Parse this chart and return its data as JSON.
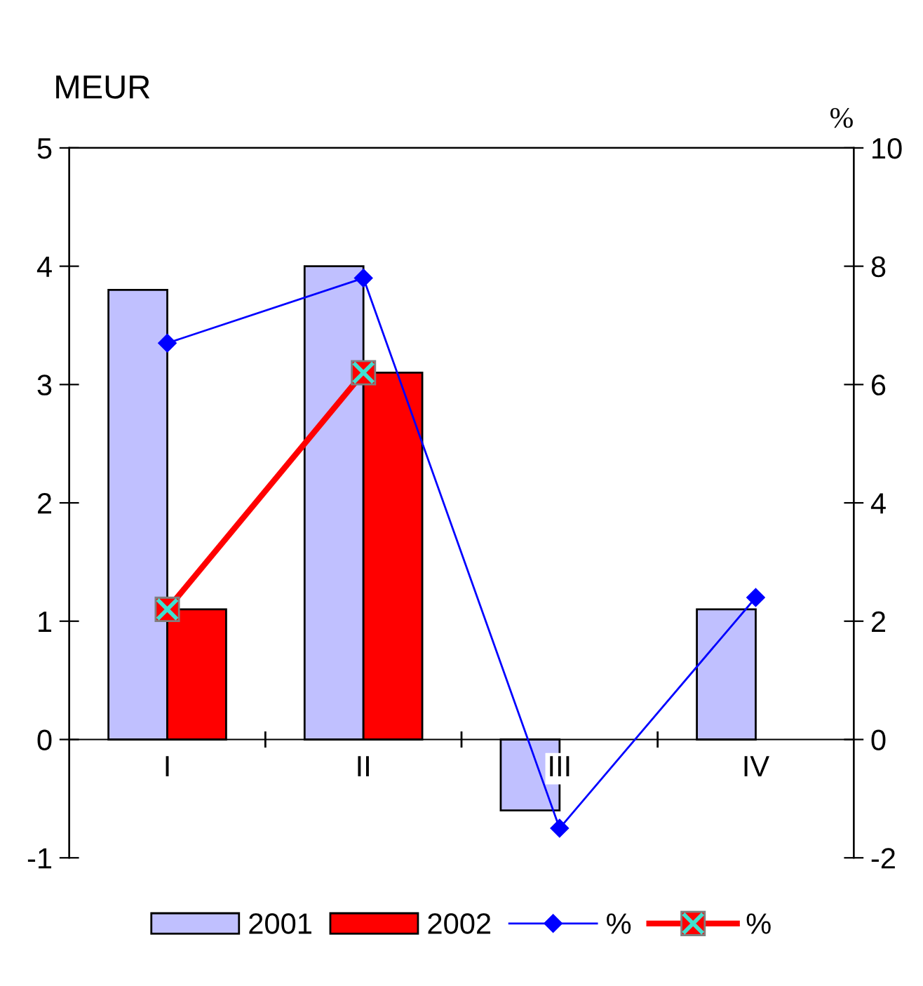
{
  "chart_data": {
    "type": "bar",
    "ylabel": "MEUR",
    "y2label": "%",
    "categories": [
      "I",
      "II",
      "III",
      "IV"
    ],
    "series": [
      {
        "name": "2001",
        "color": "#c0c0ff",
        "values": [
          3.8,
          4.0,
          -0.6,
          1.1
        ]
      },
      {
        "name": "2002",
        "color": "#ff0000",
        "values": [
          1.1,
          3.1,
          null,
          null
        ]
      },
      {
        "name": "%",
        "type": "line",
        "axis": "y2",
        "color": "#0000ff",
        "marker": "diamond",
        "values": [
          6.7,
          7.8,
          -1.5,
          2.4
        ]
      },
      {
        "name": "%",
        "type": "line",
        "axis": "y2",
        "color": "#ff0000",
        "marker": "square",
        "values": [
          2.2,
          6.2,
          null,
          null
        ]
      }
    ],
    "ylim": [
      -1,
      5
    ],
    "yticks": [
      -1,
      0,
      1,
      2,
      3,
      4,
      5
    ],
    "y2lim": [
      -2,
      10
    ],
    "y2ticks": [
      -2,
      0,
      2,
      4,
      6,
      8,
      10
    ],
    "grid": false,
    "legend": "bottom"
  }
}
